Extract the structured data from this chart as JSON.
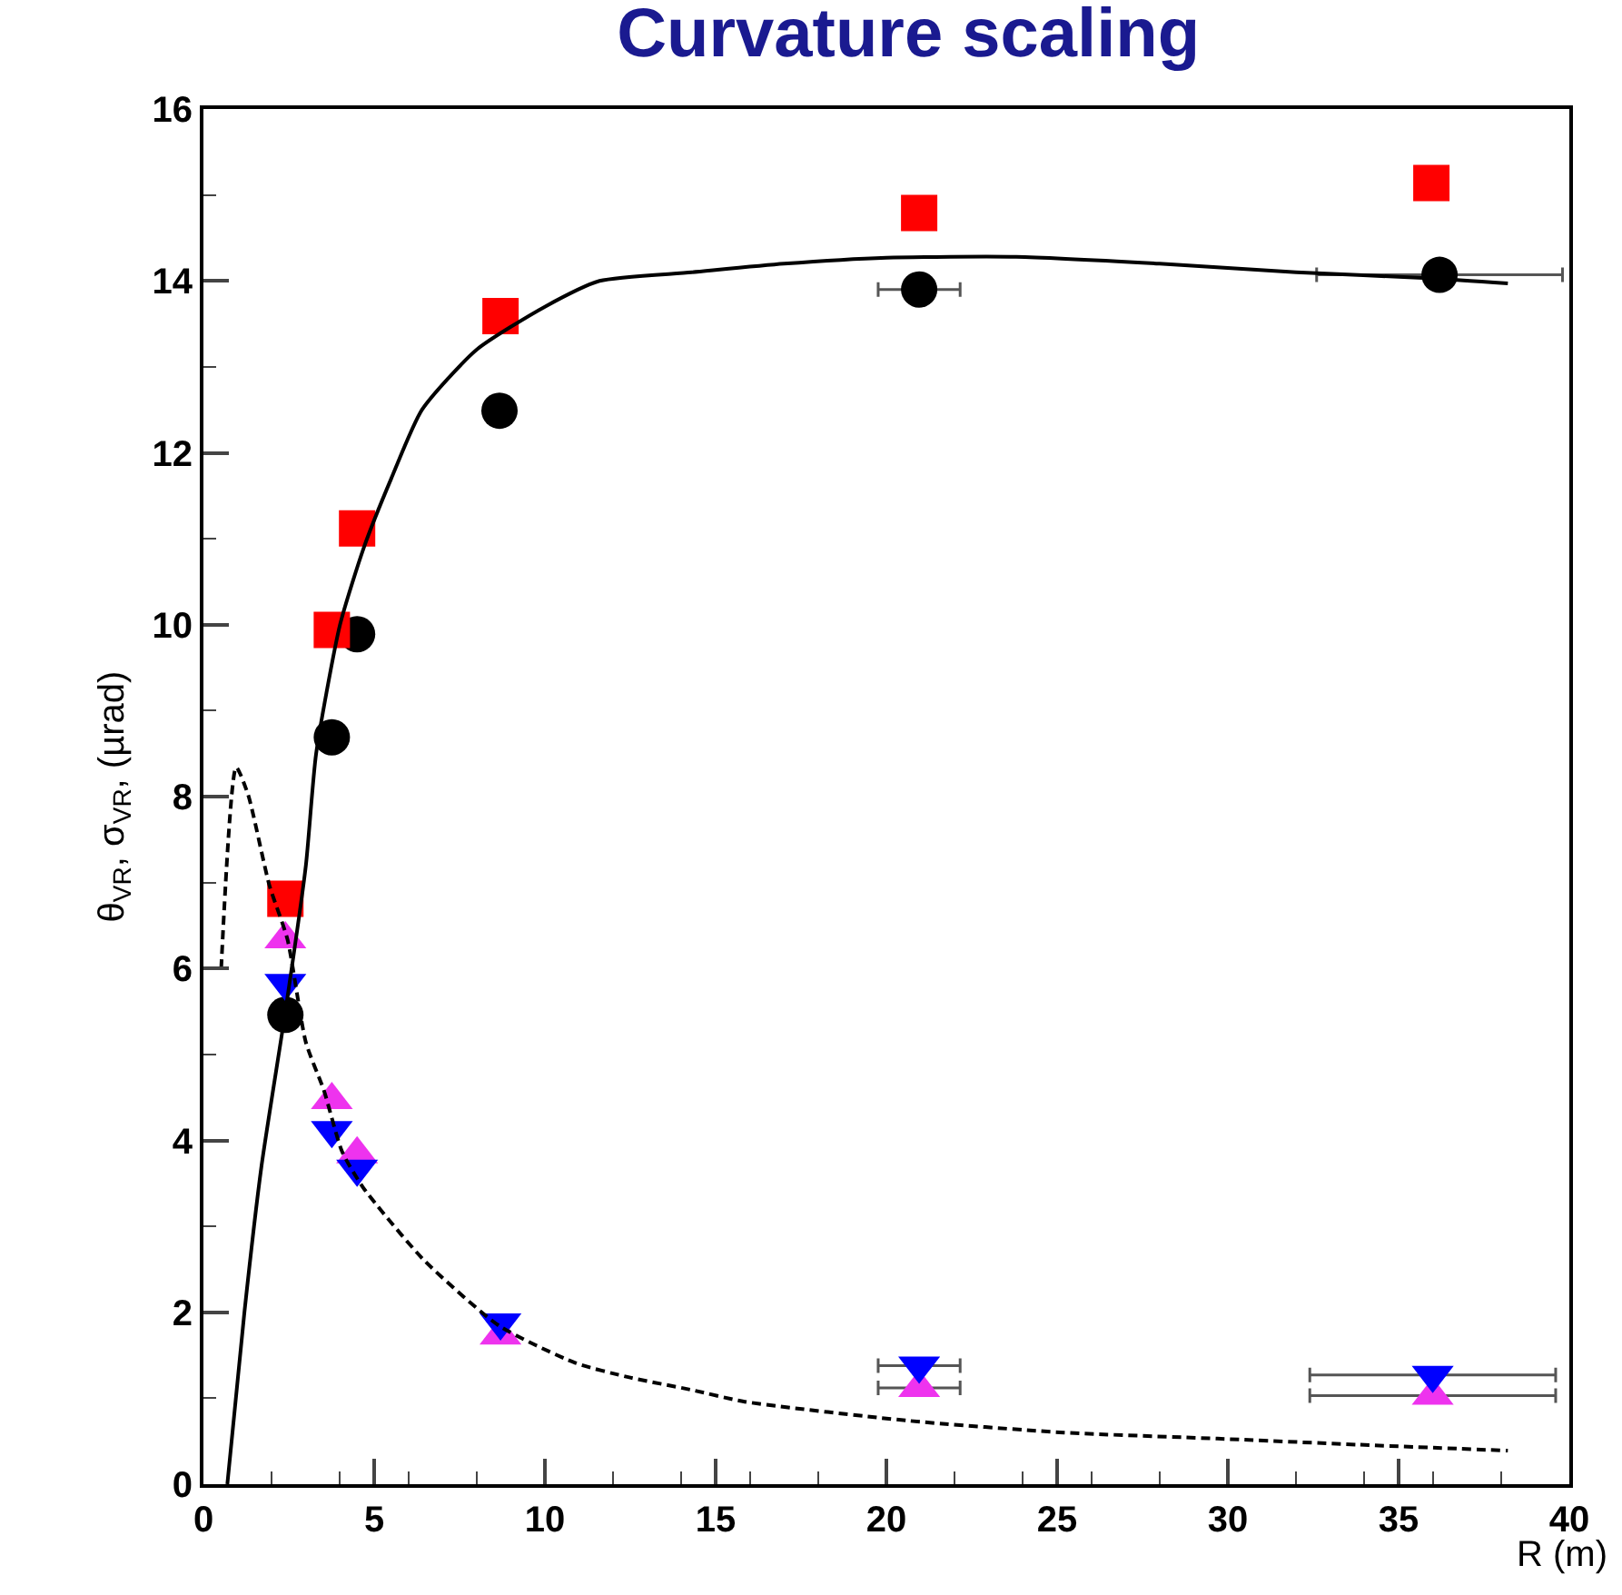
{
  "chart_data": {
    "type": "scatter",
    "title": "Curvature scaling",
    "xlabel": "R (m)",
    "ylabel": "θ$_{VR}$, σ$_{VR}$, (µrad)",
    "xlim": [
      0,
      40
    ],
    "xticks": [
      0,
      5,
      10,
      15,
      20,
      25,
      30,
      35,
      40
    ],
    "ylim": [
      0,
      16
    ],
    "yticks": [
      0,
      2,
      4,
      6,
      8,
      10,
      12,
      14,
      16
    ],
    "series": [
      {
        "type": "line",
        "color": "#000000",
        "line_style": "solid",
        "marker": "none",
        "x": [
          0.7,
          1.2,
          1.7,
          2.4,
          3.0,
          3.3,
          4.0,
          4.7,
          5.5,
          6.4,
          8,
          10,
          11.6,
          14.3,
          17,
          20,
          23.8,
          28,
          32,
          36,
          38.2
        ],
        "values": [
          0,
          2,
          3.7,
          5.5,
          7.2,
          8.5,
          10,
          10.9,
          11.7,
          12.5,
          13.2,
          13.7,
          14.0,
          14.1,
          14.2,
          14.27,
          14.28,
          14.2,
          14.1,
          14.03,
          13.97
        ]
      },
      {
        "type": "line",
        "color": "#000000",
        "line_style": "dashed",
        "marker": "none",
        "x": [
          0.52,
          0.96,
          1.31,
          1.93,
          2.46,
          3.0,
          3.53,
          4.06,
          4.68,
          6.45,
          8.67,
          10.9,
          12.5,
          14.26,
          15.85,
          20.6,
          25.2,
          29.7,
          33.8,
          38.2
        ],
        "values": [
          6.0,
          8.34,
          8.02,
          6.97,
          6.34,
          5.14,
          4.58,
          3.87,
          3.45,
          2.61,
          1.84,
          1.41,
          1.24,
          1.1,
          0.96,
          0.74,
          0.6,
          0.53,
          0.46,
          0.39
        ]
      },
      {
        "color": "#000000",
        "marker": "circle",
        "x": [
          2.4,
          3.76,
          4.5,
          8.67,
          20.96,
          36.2
        ],
        "values": [
          5.46,
          8.69,
          9.89,
          12.49,
          13.9,
          14.07
        ],
        "xerrors": [
          null,
          null,
          null,
          null,
          1.2,
          3.6
        ]
      },
      {
        "color": "#ff0000",
        "marker": "square",
        "x": [
          2.4,
          3.76,
          4.5,
          8.7,
          20.96,
          35.96
        ],
        "values": [
          6.81,
          9.94,
          11.12,
          13.59,
          14.79,
          15.14
        ]
      },
      {
        "color": "#ee33ee",
        "marker": "triangle",
        "x": [
          2.4,
          3.76,
          4.5,
          8.7,
          20.96,
          36.0
        ],
        "values": [
          6.34,
          4.47,
          3.84,
          1.73,
          1.12,
          1.03
        ],
        "xerrors": [
          null,
          null,
          null,
          null,
          1.2,
          3.6
        ]
      },
      {
        "color": "#0000ff",
        "marker": "triangle-down",
        "x": [
          2.4,
          3.76,
          4.5,
          8.7,
          20.96,
          36.0
        ],
        "values": [
          5.83,
          4.12,
          3.67,
          1.88,
          1.38,
          1.27
        ],
        "xerrors": [
          null,
          null,
          null,
          null,
          1.2,
          3.6
        ]
      }
    ]
  }
}
